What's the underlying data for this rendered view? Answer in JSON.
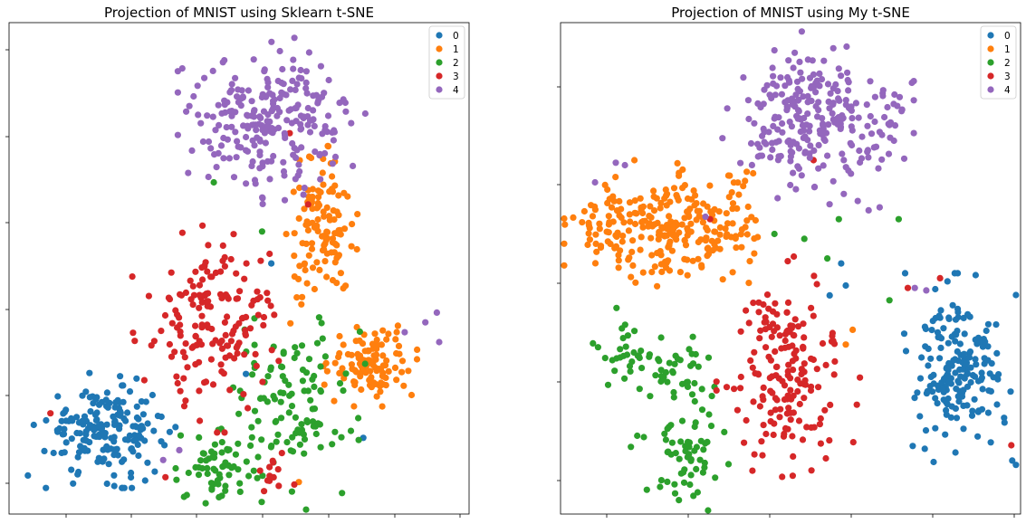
{
  "chart_data": [
    {
      "type": "scatter",
      "title": "Projection of MNIST using Sklearn t-SNE",
      "xlabel": "",
      "ylabel": "",
      "xlim": [
        0,
        100
      ],
      "ylim": [
        0,
        100
      ],
      "tick_labels": "hidden",
      "grid": false,
      "legend": "top-right",
      "series": [
        {
          "name": "0",
          "color": "#1f77b4",
          "clusters": [
            {
              "center": [
                21,
                17
              ],
              "spread": [
                6.5,
                4.5
              ],
              "count": 185
            }
          ],
          "points": [
            [
              51.5,
              28.5
            ],
            [
              57,
              51
            ],
            [
              77,
              15.5
            ]
          ]
        },
        {
          "name": "1",
          "color": "#ff7f0e",
          "clusters": [
            {
              "center": [
                68,
                57
              ],
              "spread": [
                3.5,
                7
              ],
              "count": 120
            },
            {
              "center": [
                79,
                31
              ],
              "spread": [
                4.5,
                3.5
              ],
              "count": 110
            }
          ],
          "points": [
            [
              63,
              6.5
            ]
          ]
        },
        {
          "name": "2",
          "color": "#2ca02c",
          "clusters": [
            {
              "center": [
                46,
                9.5
              ],
              "spread": [
                4.5,
                3.5
              ],
              "count": 65
            },
            {
              "center": [
                61,
                23
              ],
              "spread": [
                7,
                8.5
              ],
              "count": 110
            }
          ],
          "points": [
            [
              44.5,
              67.5
            ],
            [
              55,
              57.5
            ]
          ]
        },
        {
          "name": "3",
          "color": "#d62728",
          "clusters": [
            {
              "center": [
                45,
                40
              ],
              "spread": [
                7,
                9
              ],
              "count": 165
            },
            {
              "center": [
                57,
                8.5
              ],
              "spread": [
                2.2,
                2
              ],
              "count": 12
            }
          ],
          "points": [
            [
              9,
              20.5
            ],
            [
              34,
              7.5
            ],
            [
              61,
              77.5
            ],
            [
              65,
              63
            ],
            [
              62,
              6
            ]
          ]
        },
        {
          "name": "4",
          "color": "#9467bd",
          "clusters": [
            {
              "center": [
                57.5,
                80
              ],
              "spread": [
                8,
                6.5
              ],
              "count": 240
            }
          ],
          "points": [
            [
              93,
              41
            ],
            [
              90.5,
              39
            ],
            [
              93.5,
              35
            ],
            [
              86,
              37
            ],
            [
              37,
              13
            ],
            [
              33.5,
              11
            ],
            [
              64,
              65
            ]
          ]
        }
      ]
    },
    {
      "type": "scatter",
      "title": "Projection of MNIST using My t-SNE",
      "xlabel": "",
      "ylabel": "",
      "xlim": [
        0,
        100
      ],
      "ylim": [
        0,
        100
      ],
      "tick_labels": "hidden",
      "grid": false,
      "legend": "top-right",
      "series": [
        {
          "name": "0",
          "color": "#1f77b4",
          "clusters": [
            {
              "center": [
                86,
                29.5
              ],
              "spread": [
                5,
                7.5
              ],
              "count": 185
            }
          ],
          "points": [
            [
              61,
              51
            ],
            [
              58.5,
              44.5
            ],
            [
              62,
              46.5
            ]
          ]
        },
        {
          "name": "1",
          "color": "#ff7f0e",
          "clusters": [
            {
              "center": [
                18,
                59
              ],
              "spread": [
                7.5,
                5
              ],
              "count": 160
            },
            {
              "center": [
                31,
                59
              ],
              "spread": [
                6,
                5
              ],
              "count": 110
            }
          ],
          "points": [
            [
              63.5,
              37.5
            ],
            [
              62,
              34.5
            ]
          ]
        },
        {
          "name": "2",
          "color": "#2ca02c",
          "clusters": [
            {
              "center": [
                14.5,
                33
              ],
              "spread": [
                3.5,
                4
              ],
              "count": 30
            },
            {
              "center": [
                25.5,
                28
              ],
              "spread": [
                4,
                4
              ],
              "count": 40
            },
            {
              "center": [
                27,
                12
              ],
              "spread": [
                4.5,
                5
              ],
              "count": 60
            }
          ],
          "points": [
            [
              46.5,
              57
            ],
            [
              60.5,
              60
            ],
            [
              71.5,
              43.5
            ],
            [
              73.5,
              60
            ],
            [
              53,
              56
            ],
            [
              58,
              52
            ]
          ]
        },
        {
          "name": "3",
          "color": "#d62728",
          "clusters": [
            {
              "center": [
                49.5,
                29
              ],
              "spread": [
                6,
                9
              ],
              "count": 175
            }
          ],
          "points": [
            [
              32.5,
              60
            ],
            [
              55,
              72
            ],
            [
              82.5,
              48
            ],
            [
              75.5,
              46
            ],
            [
              98,
              14
            ]
          ]
        },
        {
          "name": "4",
          "color": "#9467bd",
          "clusters": [
            {
              "center": [
                56,
                80
              ],
              "spread": [
                8,
                7
              ],
              "count": 260
            }
          ],
          "points": [
            [
              7.5,
              67.5
            ],
            [
              12,
              71.5
            ],
            [
              14,
              71
            ],
            [
              77,
              46
            ],
            [
              79.5,
              45.5
            ],
            [
              31.5,
              60.5
            ]
          ]
        }
      ]
    }
  ]
}
